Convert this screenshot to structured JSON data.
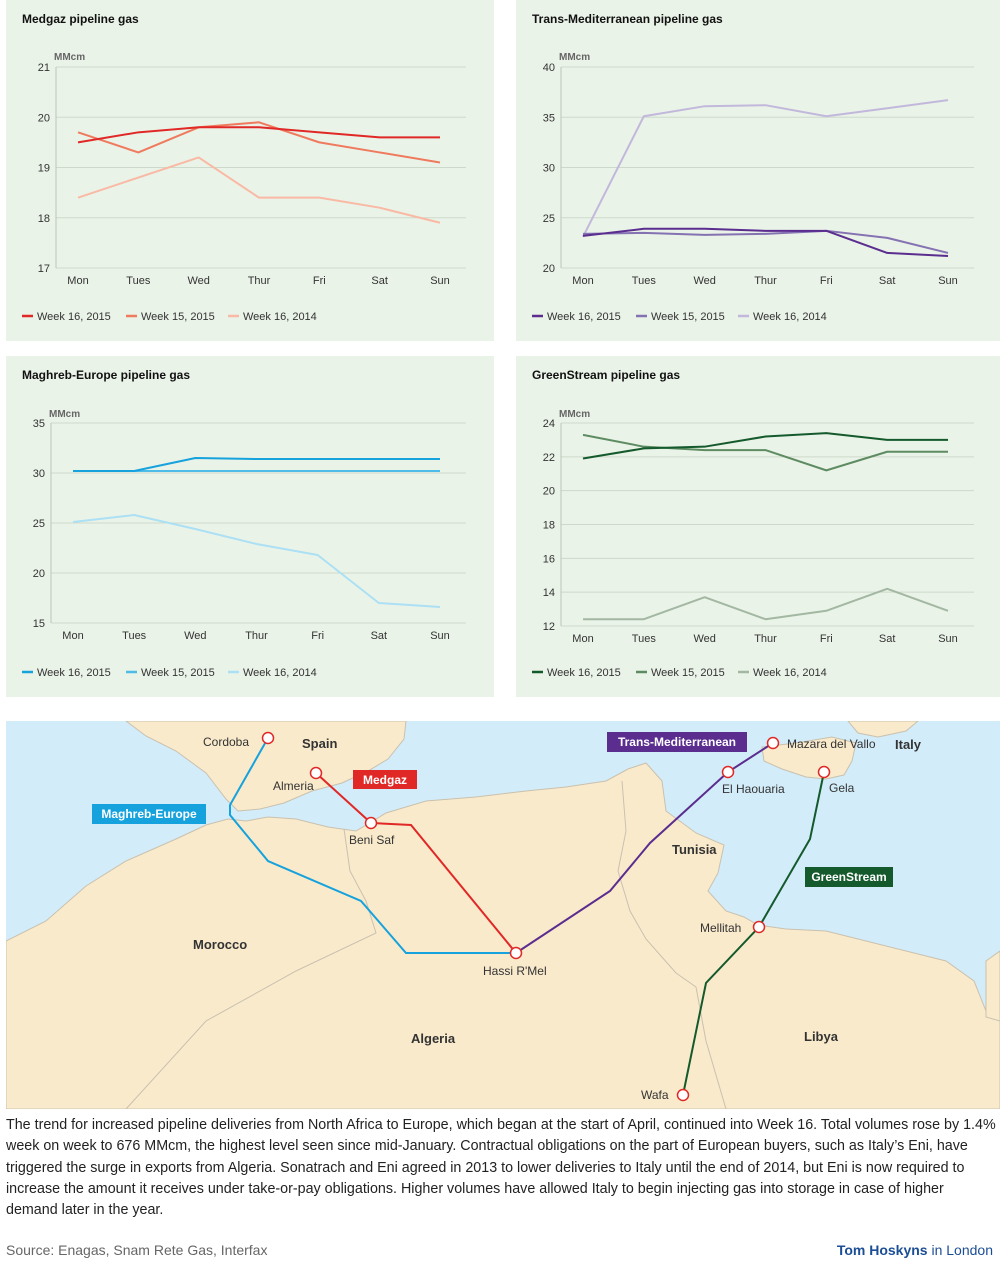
{
  "charts_meta": {
    "days": [
      "Mon",
      "Tues",
      "Wed",
      "Thur",
      "Fri",
      "Sat",
      "Sun"
    ]
  },
  "chart_data": [
    {
      "id": "medgaz",
      "type": "line",
      "title": "Medgaz pipeline gas",
      "ylabel": "MMcm",
      "categories": [
        "Mon",
        "Tues",
        "Wed",
        "Thur",
        "Fri",
        "Sat",
        "Sun"
      ],
      "ylim": [
        17,
        21
      ],
      "yticks": [
        17,
        18,
        19,
        20,
        21
      ],
      "grid": "horizontal",
      "legend": "bottom",
      "series": [
        {
          "name": "Week 16, 2015",
          "color": "#e02826",
          "values": [
            19.5,
            19.7,
            19.8,
            19.8,
            19.7,
            19.6,
            19.6
          ]
        },
        {
          "name": "Week 15, 2015",
          "color": "#ef7a5e",
          "values": [
            19.7,
            19.3,
            19.8,
            19.9,
            19.5,
            19.3,
            19.1
          ]
        },
        {
          "name": "Week 16, 2014",
          "color": "#f9b9a4",
          "values": [
            18.4,
            18.8,
            19.2,
            18.4,
            18.4,
            18.2,
            17.9
          ]
        }
      ]
    },
    {
      "id": "transmed",
      "type": "line",
      "title": "Trans-Mediterranean pipeline gas",
      "ylabel": "MMcm",
      "categories": [
        "Mon",
        "Tues",
        "Wed",
        "Thur",
        "Fri",
        "Sat",
        "Sun"
      ],
      "ylim": [
        20,
        40
      ],
      "yticks": [
        20,
        25,
        30,
        35,
        40
      ],
      "grid": "horizontal",
      "legend": "bottom",
      "series": [
        {
          "name": "Week 16, 2015",
          "color": "#5a2d8f",
          "values": [
            23.2,
            23.9,
            23.9,
            23.7,
            23.7,
            21.5,
            21.2
          ]
        },
        {
          "name": "Week 15, 2015",
          "color": "#8472b2",
          "values": [
            23.4,
            23.5,
            23.3,
            23.4,
            23.7,
            23.0,
            21.5
          ]
        },
        {
          "name": "Week 16, 2014",
          "color": "#c2b8dc",
          "values": [
            23.1,
            35.1,
            36.1,
            36.2,
            35.1,
            35.9,
            36.7
          ]
        }
      ]
    },
    {
      "id": "maghreb",
      "type": "line",
      "title": "Maghreb-Europe pipeline gas",
      "ylabel": "MMcm",
      "categories": [
        "Mon",
        "Tues",
        "Wed",
        "Thur",
        "Fri",
        "Sat",
        "Sun"
      ],
      "ylim": [
        15,
        35
      ],
      "yticks": [
        15,
        20,
        25,
        30,
        35
      ],
      "grid": "horizontal",
      "legend": "bottom",
      "series": [
        {
          "name": "Week 16, 2015",
          "color": "#16a2dc",
          "values": [
            30.2,
            30.2,
            31.5,
            31.4,
            31.4,
            31.4,
            31.4
          ]
        },
        {
          "name": "Week 15, 2015",
          "color": "#4dbce9",
          "values": [
            30.2,
            30.2,
            30.2,
            30.2,
            30.2,
            30.2,
            30.2
          ]
        },
        {
          "name": "Week 16, 2014",
          "color": "#ace0f4",
          "values": [
            25.1,
            25.8,
            24.4,
            22.9,
            21.8,
            17.0,
            16.6
          ]
        }
      ]
    },
    {
      "id": "greenstream",
      "type": "line",
      "title": "GreenStream pipeline gas",
      "ylabel": "MMcm",
      "categories": [
        "Mon",
        "Tues",
        "Wed",
        "Thur",
        "Fri",
        "Sat",
        "Sun"
      ],
      "ylim": [
        12,
        24
      ],
      "yticks": [
        12,
        14,
        16,
        18,
        20,
        22,
        24
      ],
      "grid": "horizontal",
      "legend": "bottom",
      "series": [
        {
          "name": "Week 16, 2015",
          "color": "#145a2c",
          "values": [
            21.9,
            22.5,
            22.6,
            23.2,
            23.4,
            23.0,
            23.0
          ]
        },
        {
          "name": "Week 15, 2015",
          "color": "#5e8c62",
          "values": [
            23.3,
            22.6,
            22.4,
            22.4,
            21.2,
            22.3,
            22.3
          ]
        },
        {
          "name": "Week 16, 2014",
          "color": "#a3b8a3",
          "values": [
            12.4,
            12.4,
            13.7,
            12.4,
            12.9,
            14.2,
            12.9
          ]
        }
      ]
    }
  ],
  "map": {
    "countries": [
      "Spain",
      "Italy",
      "Tunisia",
      "Morocco",
      "Algeria",
      "Libya"
    ],
    "places": [
      "Cordoba",
      "Almeria",
      "Beni Saf",
      "Hassi R'Mel",
      "El Haouaria",
      "Mazara del Vallo",
      "Gela",
      "Mellitah",
      "Wafa"
    ],
    "pipelines": [
      {
        "name": "Medgaz",
        "color": "#e02826"
      },
      {
        "name": "Maghreb-Europe",
        "color": "#16a2dc"
      },
      {
        "name": "Trans-Mediterranean",
        "color": "#5a2d8f"
      },
      {
        "name": "GreenStream",
        "color": "#145a2c"
      }
    ]
  },
  "paragraph": "The trend for increased pipeline deliveries from North Africa to Europe, which began at the start of April, continued into Week 16. Total volumes rose by 1.4% week on week to 676 MMcm, the highest level seen since mid-January. Contractual obligations on the part of European buyers, such as Italy’s Eni, have triggered the surge in exports from Algeria. Sonatrach and Eni agreed in 2013 to lower deliveries to Italy until the end of 2014, but Eni is now required to increase the amount it receives under take-or-pay obligations. Higher volumes have allowed Italy to begin injecting gas into storage in case of higher demand later in the year.",
  "source": "Source: Enagas, Snam Rete Gas, Interfax",
  "byline": {
    "author": "Tom Hoskyns",
    "location": " in London"
  }
}
